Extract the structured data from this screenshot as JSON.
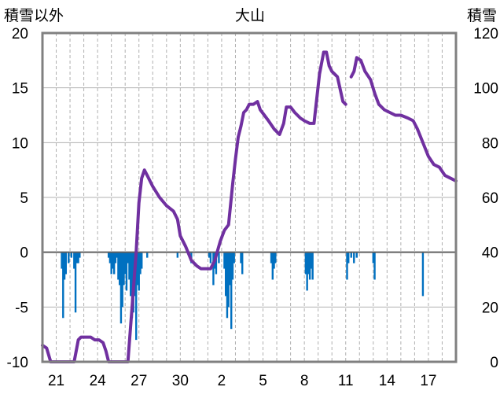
{
  "chart_data": {
    "type": "bar+line",
    "title": "大山",
    "ylabel_left": "積雪以外",
    "ylabel_right": "積雪",
    "y_left_range": [
      -10,
      20
    ],
    "y_left_ticks": [
      "20",
      "15",
      "10",
      "5",
      "0",
      "-5",
      "-10"
    ],
    "y_right_range": [
      0,
      120
    ],
    "y_right_ticks": [
      "120",
      "100",
      "80",
      "60",
      "40",
      "20",
      "0"
    ],
    "x_range_days": [
      0,
      30
    ],
    "x_tick_labels": [
      "21",
      "24",
      "27",
      "30",
      "2",
      "5",
      "8",
      "11",
      "14",
      "17"
    ],
    "grid": "vertical dashed daily, horizontal solid",
    "colors": {
      "bar": "#0070c0",
      "line": "#7030a0",
      "axis": "#808080",
      "grid": "#b0b0b0"
    },
    "bars_left_axis": {
      "name": "積雪以外",
      "values": [
        [
          1.4,
          -1.5
        ],
        [
          1.5,
          -6.0
        ],
        [
          1.6,
          -2.5
        ],
        [
          1.7,
          -2.0
        ],
        [
          1.9,
          -1.0
        ],
        [
          2.1,
          -0.5
        ],
        [
          2.3,
          -1.5
        ],
        [
          2.4,
          -5.5
        ],
        [
          2.5,
          -1.0
        ],
        [
          2.6,
          -1.0
        ],
        [
          2.7,
          -0.5
        ],
        [
          4.8,
          -0.5
        ],
        [
          4.9,
          -1.0
        ],
        [
          5.0,
          -2.0
        ],
        [
          5.1,
          -1.5
        ],
        [
          5.2,
          -2.0
        ],
        [
          5.3,
          -1.0
        ],
        [
          5.4,
          -0.5
        ],
        [
          5.5,
          -2.5
        ],
        [
          5.6,
          -3.0
        ],
        [
          5.7,
          -6.5
        ],
        [
          5.8,
          -5.0
        ],
        [
          5.9,
          -3.0
        ],
        [
          6.0,
          -2.0
        ],
        [
          6.1,
          -3.5
        ],
        [
          6.2,
          -1.0
        ],
        [
          6.3,
          -2.5
        ],
        [
          6.4,
          -4.0
        ],
        [
          6.5,
          -6.0
        ],
        [
          6.6,
          -5.5
        ],
        [
          6.7,
          -4.0
        ],
        [
          6.8,
          -8.0
        ],
        [
          6.9,
          -3.0
        ],
        [
          7.0,
          -3.5
        ],
        [
          7.1,
          -2.0
        ],
        [
          7.2,
          -1.5
        ],
        [
          7.6,
          -0.5
        ],
        [
          9.8,
          -0.5
        ],
        [
          10.8,
          -1.0
        ],
        [
          12.1,
          -0.5
        ],
        [
          12.2,
          -1.0
        ],
        [
          12.4,
          -3.0
        ],
        [
          12.5,
          -1.5
        ],
        [
          12.6,
          -2.0
        ],
        [
          12.8,
          -1.0
        ],
        [
          13.2,
          -1.5
        ],
        [
          13.3,
          -4.0
        ],
        [
          13.4,
          -6.0
        ],
        [
          13.5,
          -5.0
        ],
        [
          13.6,
          -3.0
        ],
        [
          13.7,
          -7.0
        ],
        [
          13.8,
          -2.5
        ],
        [
          13.9,
          -1.0
        ],
        [
          14.4,
          -1.0
        ],
        [
          14.5,
          -2.0
        ],
        [
          16.6,
          -1.0
        ],
        [
          16.7,
          -2.5
        ],
        [
          16.8,
          -1.5
        ],
        [
          16.9,
          -1.0
        ],
        [
          19.1,
          -2.0
        ],
        [
          19.2,
          -3.5
        ],
        [
          19.3,
          -2.0
        ],
        [
          19.4,
          -2.5
        ],
        [
          19.5,
          -1.5
        ],
        [
          19.6,
          -2.5
        ],
        [
          22.1,
          -2.5
        ],
        [
          22.2,
          -1.0
        ],
        [
          22.4,
          -0.5
        ],
        [
          22.6,
          -1.0
        ],
        [
          22.8,
          -0.5
        ],
        [
          24.0,
          -1.0
        ],
        [
          24.1,
          -2.5
        ],
        [
          27.6,
          -4.0
        ]
      ]
    },
    "line_right_axis": {
      "name": "積雪",
      "points": [
        [
          0.0,
          6
        ],
        [
          0.3,
          5
        ],
        [
          0.6,
          0
        ],
        [
          1.0,
          0
        ],
        [
          1.5,
          0
        ],
        [
          2.0,
          0
        ],
        [
          2.3,
          0
        ],
        [
          2.6,
          8
        ],
        [
          2.8,
          9
        ],
        [
          3.0,
          9
        ],
        [
          3.5,
          9
        ],
        [
          3.8,
          8
        ],
        [
          4.1,
          8
        ],
        [
          4.4,
          7
        ],
        [
          4.6,
          4
        ],
        [
          4.8,
          0
        ],
        [
          5.5,
          0
        ],
        [
          6.0,
          0
        ],
        [
          6.2,
          0
        ],
        [
          6.5,
          20
        ],
        [
          6.8,
          40
        ],
        [
          7.0,
          58
        ],
        [
          7.2,
          67
        ],
        [
          7.4,
          70
        ],
        [
          7.6,
          68
        ],
        [
          8.0,
          64
        ],
        [
          8.5,
          60
        ],
        [
          9.0,
          57
        ],
        [
          9.5,
          55
        ],
        [
          9.8,
          52
        ],
        [
          10.0,
          46
        ],
        [
          10.4,
          42
        ],
        [
          10.8,
          37
        ],
        [
          11.2,
          35
        ],
        [
          11.5,
          34
        ],
        [
          11.8,
          34
        ],
        [
          12.2,
          34
        ],
        [
          12.5,
          37
        ],
        [
          12.9,
          44
        ],
        [
          13.2,
          48
        ],
        [
          13.5,
          50
        ],
        [
          13.8,
          65
        ],
        [
          14.0,
          74
        ],
        [
          14.2,
          82
        ],
        [
          14.4,
          86
        ],
        [
          14.6,
          91
        ],
        [
          14.8,
          92
        ],
        [
          15.0,
          94
        ],
        [
          15.3,
          94
        ],
        [
          15.6,
          95
        ],
        [
          15.8,
          92
        ],
        [
          16.1,
          90
        ],
        [
          16.4,
          88
        ],
        [
          16.8,
          85
        ],
        [
          17.2,
          83
        ],
        [
          17.5,
          87
        ],
        [
          17.7,
          93
        ],
        [
          18.0,
          93
        ],
        [
          18.3,
          91
        ],
        [
          18.7,
          89
        ],
        [
          19.0,
          88
        ],
        [
          19.4,
          87
        ],
        [
          19.7,
          87
        ],
        [
          19.9,
          96
        ],
        [
          20.1,
          105
        ],
        [
          20.4,
          113
        ],
        [
          20.6,
          113
        ],
        [
          20.8,
          108
        ],
        [
          21.0,
          106
        ],
        [
          21.4,
          104
        ],
        [
          21.8,
          95
        ],
        [
          22.0,
          94
        ]
      ],
      "points_segment2": [
        [
          22.4,
          104
        ],
        [
          22.6,
          106
        ],
        [
          22.8,
          111
        ],
        [
          23.1,
          110
        ],
        [
          23.4,
          106
        ],
        [
          23.8,
          103
        ],
        [
          24.1,
          98
        ],
        [
          24.4,
          94
        ],
        [
          24.8,
          92
        ],
        [
          25.2,
          91
        ],
        [
          25.6,
          90
        ],
        [
          26.0,
          90
        ],
        [
          26.5,
          89
        ],
        [
          26.9,
          88
        ],
        [
          27.2,
          85
        ],
        [
          27.6,
          80
        ],
        [
          28.0,
          75
        ],
        [
          28.4,
          72
        ],
        [
          28.8,
          71
        ],
        [
          29.2,
          68
        ],
        [
          29.6,
          67
        ],
        [
          30.0,
          66
        ]
      ]
    }
  }
}
